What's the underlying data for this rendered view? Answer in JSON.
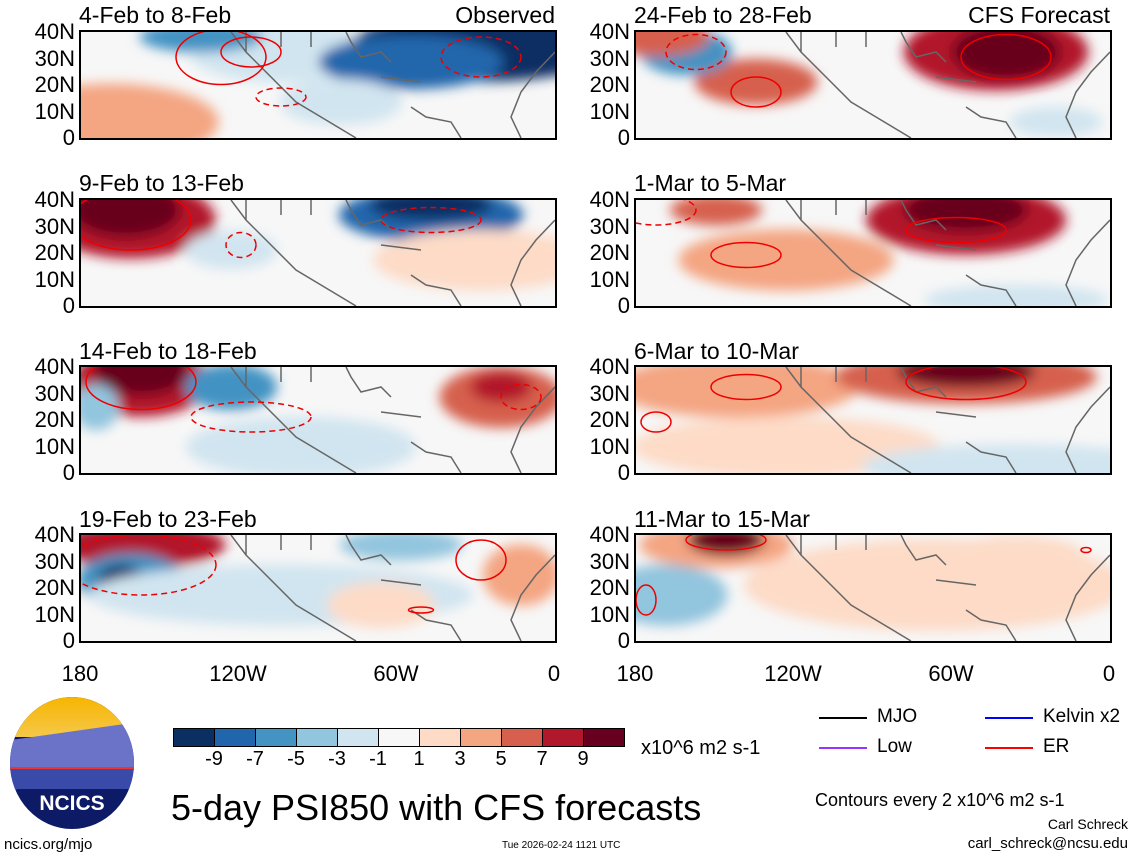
{
  "panels": [
    {
      "title": "4-Feb to 8-Feb",
      "label": "Observed"
    },
    {
      "title": "24-Feb to 28-Feb",
      "label": "CFS Forecast"
    },
    {
      "title": "9-Feb to 13-Feb"
    },
    {
      "title": "1-Mar to 5-Mar"
    },
    {
      "title": "14-Feb to 18-Feb"
    },
    {
      "title": "6-Mar to 10-Mar"
    },
    {
      "title": "19-Feb to 23-Feb"
    },
    {
      "title": "11-Mar to 15-Mar"
    }
  ],
  "lat_ticks": [
    "40N",
    "30N",
    "20N",
    "10N",
    "0"
  ],
  "lon_ticks": [
    "180",
    "120W",
    "60W",
    "0"
  ],
  "colorbar": {
    "colors": [
      "#0b2f63",
      "#2166ac",
      "#4393c3",
      "#92c5de",
      "#d1e5f0",
      "#f7f7f7",
      "#fddbc7",
      "#f4a582",
      "#d6604d",
      "#b2182b",
      "#67001f"
    ],
    "labels": [
      "-9",
      "-7",
      "-5",
      "-3",
      "-1",
      "1",
      "3",
      "5",
      "7",
      "9"
    ],
    "units": "x10^6 m2 s-1"
  },
  "legend": [
    {
      "label": "MJO",
      "color": "#000000"
    },
    {
      "label": "Kelvin x2",
      "color": "#0000ff"
    },
    {
      "label": "Low",
      "color": "#9933ff"
    },
    {
      "label": "ER",
      "color": "#ff0000"
    }
  ],
  "title": "5-day PSI850 with CFS forecasts",
  "contours_note": "Contours every 2 x10^6 m2 s-1",
  "author": "Carl Schreck",
  "email": "carl_schreck@ncsu.edu",
  "site": "ncics.org/mjo",
  "timestamp": "Tue 2026-02-24 1121 UTC",
  "logo_text": "NCICS"
}
